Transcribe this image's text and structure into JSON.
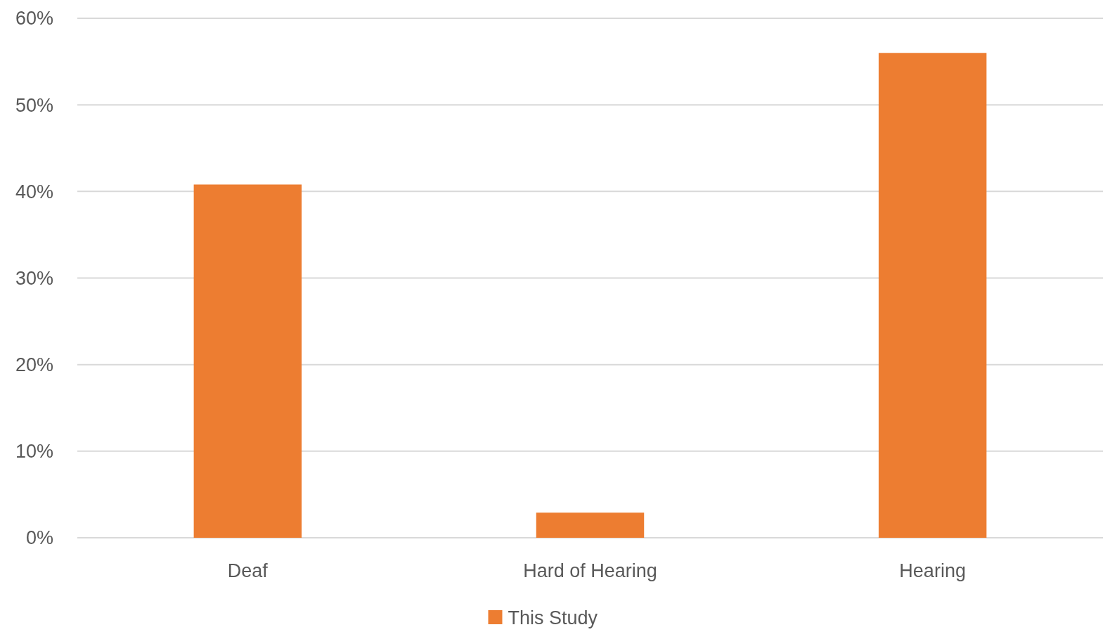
{
  "chart_data": {
    "type": "bar",
    "categories": [
      "Deaf",
      "Hard of Hearing",
      "Hearing"
    ],
    "series": [
      {
        "name": "This Study",
        "color": "#ed7d31",
        "values": [
          40.8,
          2.9,
          56.0
        ]
      }
    ],
    "ylim": [
      0,
      60
    ],
    "yticks": [
      {
        "value": 0,
        "label": "0%"
      },
      {
        "value": 10,
        "label": "10%"
      },
      {
        "value": 20,
        "label": "20%"
      },
      {
        "value": 30,
        "label": "30%"
      },
      {
        "value": 40,
        "label": "40%"
      },
      {
        "value": 50,
        "label": "50%"
      },
      {
        "value": 60,
        "label": "60%"
      }
    ],
    "grid": "y",
    "legend": "bottom"
  }
}
